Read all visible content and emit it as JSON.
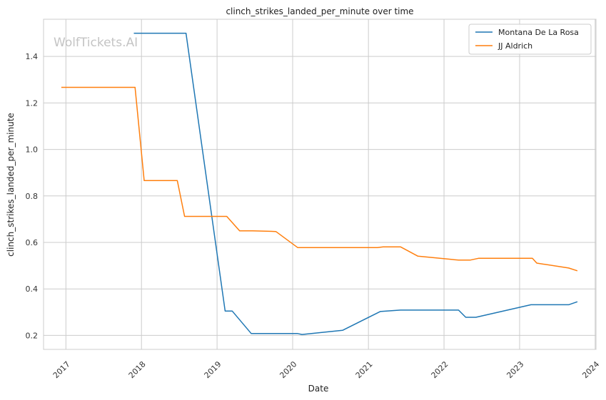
{
  "chart_data": {
    "type": "line",
    "title": "clinch_strikes_landed_per_minute over time",
    "xlabel": "Date",
    "ylabel": "clinch_strikes_landed_per_minute",
    "watermark": "WolfTickets.AI",
    "xlim": [
      "2016-09-15",
      "2024-01-05"
    ],
    "ylim": [
      0.14,
      1.56
    ],
    "x_ticks": [
      "2017-01-01",
      "2018-01-01",
      "2019-01-01",
      "2020-01-01",
      "2021-01-01",
      "2022-01-01",
      "2023-01-01",
      "2024-01-01"
    ],
    "x_tick_labels": [
      "2017",
      "2018",
      "2019",
      "2020",
      "2021",
      "2022",
      "2023",
      "2024"
    ],
    "y_ticks": [
      0.2,
      0.4,
      0.6,
      0.8,
      1.0,
      1.2,
      1.4
    ],
    "y_tick_labels": [
      "0.2",
      "0.4",
      "0.6",
      "0.8",
      "1.0",
      "1.2",
      "1.4"
    ],
    "grid": true,
    "legend_position": "top-right",
    "series": [
      {
        "name": "Montana De La Rosa",
        "color": "#1f77b4",
        "points": [
          [
            "2017-11-25",
            1.5
          ],
          [
            "2018-08-04",
            1.5
          ],
          [
            "2019-02-09",
            0.305
          ],
          [
            "2019-03-15",
            0.305
          ],
          [
            "2019-06-15",
            0.208
          ],
          [
            "2020-01-25",
            0.208
          ],
          [
            "2020-02-15",
            0.204
          ],
          [
            "2020-08-29",
            0.222
          ],
          [
            "2021-02-27",
            0.303
          ],
          [
            "2021-06-05",
            0.309
          ],
          [
            "2022-03-12",
            0.309
          ],
          [
            "2022-04-16",
            0.278
          ],
          [
            "2022-06-04",
            0.278
          ],
          [
            "2023-02-25",
            0.332
          ],
          [
            "2023-08-26",
            0.332
          ],
          [
            "2023-10-07",
            0.345
          ]
        ]
      },
      {
        "name": "JJ Aldrich",
        "color": "#ff7f0e",
        "points": [
          [
            "2016-12-10",
            1.267
          ],
          [
            "2017-12-01",
            1.267
          ],
          [
            "2018-01-14",
            0.866
          ],
          [
            "2018-06-23",
            0.866
          ],
          [
            "2018-07-28",
            0.712
          ],
          [
            "2019-02-17",
            0.712
          ],
          [
            "2019-04-20",
            0.65
          ],
          [
            "2019-06-22",
            0.65
          ],
          [
            "2019-10-12",
            0.647
          ],
          [
            "2020-01-25",
            0.578
          ],
          [
            "2021-02-13",
            0.578
          ],
          [
            "2021-03-13",
            0.581
          ],
          [
            "2021-06-05",
            0.581
          ],
          [
            "2021-08-28",
            0.541
          ],
          [
            "2022-03-12",
            0.524
          ],
          [
            "2022-05-07",
            0.524
          ],
          [
            "2022-06-18",
            0.532
          ],
          [
            "2023-03-04",
            0.532
          ],
          [
            "2023-03-25",
            0.511
          ],
          [
            "2023-08-26",
            0.49
          ],
          [
            "2023-10-07",
            0.478
          ]
        ]
      }
    ]
  }
}
